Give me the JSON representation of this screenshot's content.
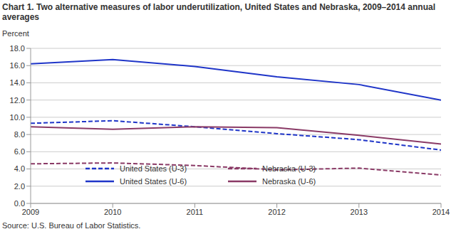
{
  "chart_data": {
    "type": "line",
    "title": "Chart 1. Two alternative measures of labor underutilization, United States and Nebraska, 2009–2014 annual averages",
    "y_label": "Percent",
    "source": "Source: U.S. Bureau of Labor Statistics.",
    "x": [
      2009,
      2010,
      2011,
      2012,
      2013,
      2014
    ],
    "xlim": [
      2009,
      2014
    ],
    "xticks": [
      2009,
      2010,
      2011,
      2012,
      2013,
      2014
    ],
    "ylim": [
      0,
      18
    ],
    "yticks": [
      {
        "value": 0,
        "label": "0.0"
      },
      {
        "value": 2,
        "label": "2.0"
      },
      {
        "value": 4,
        "label": "4.0"
      },
      {
        "value": 6,
        "label": "6.0"
      },
      {
        "value": 8,
        "label": "8.0"
      },
      {
        "value": 10,
        "label": "10.0"
      },
      {
        "value": 12,
        "label": "12.0"
      },
      {
        "value": 14,
        "label": "14.0"
      },
      {
        "value": 16,
        "label": "16.0"
      },
      {
        "value": 18,
        "label": "18.0"
      }
    ],
    "grid": true,
    "legend": "bottom",
    "series": [
      {
        "name": "United States (U-3)",
        "color": "#1f35c8",
        "line_style": "dashed",
        "values": [
          9.3,
          9.6,
          8.9,
          8.1,
          7.4,
          6.2
        ]
      },
      {
        "name": "Nebraska (U-3)",
        "color": "#8a3a66",
        "line_style": "dashed",
        "values": [
          4.6,
          4.7,
          4.4,
          3.9,
          4.1,
          3.3
        ]
      },
      {
        "name": "United States (U-6)",
        "color": "#1f35c8",
        "line_style": "solid",
        "values": [
          16.2,
          16.7,
          15.9,
          14.7,
          13.8,
          12.0
        ]
      },
      {
        "name": "Nebraska (U-6)",
        "color": "#8a3a66",
        "line_style": "solid",
        "values": [
          8.9,
          8.6,
          8.9,
          8.8,
          7.9,
          6.9
        ]
      }
    ]
  }
}
